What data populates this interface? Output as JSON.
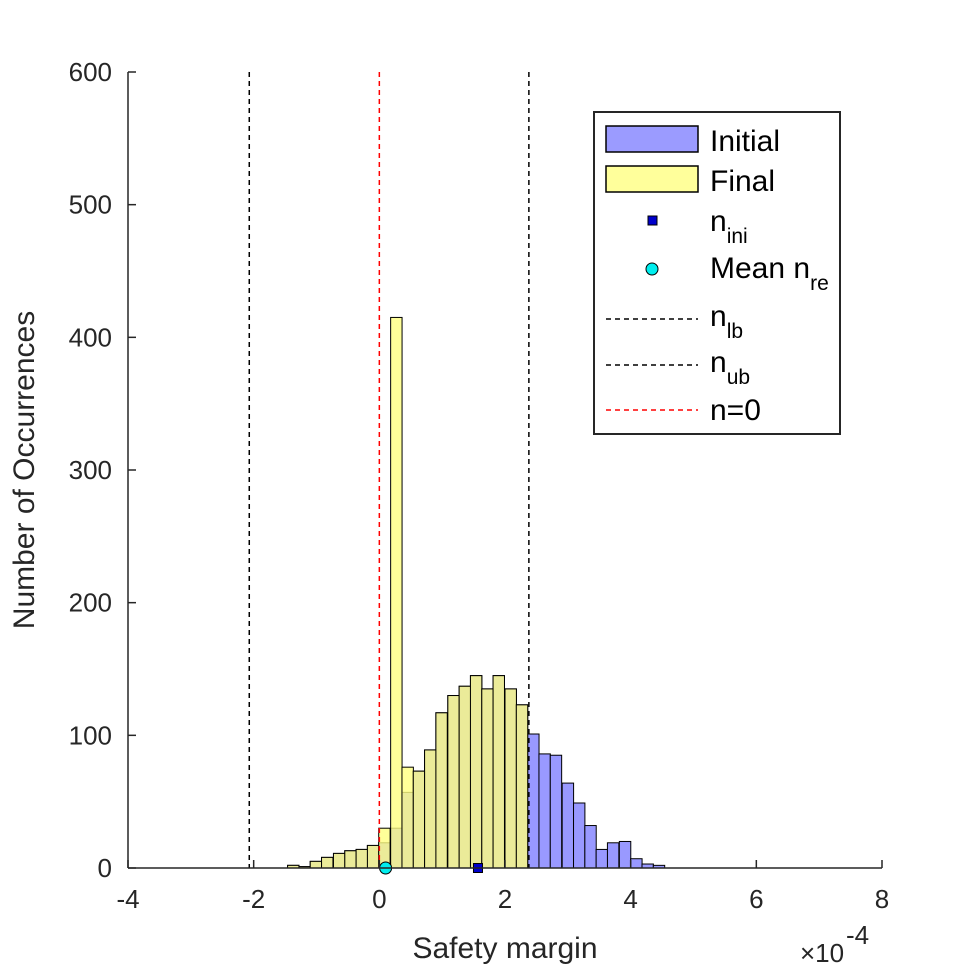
{
  "chart_data": {
    "type": "bar",
    "subtype": "overlaid-histogram",
    "title": "",
    "xlabel": "Safety margin",
    "ylabel": "Number of Occurrences",
    "x_exponent_label": "×10",
    "x_exponent_power": "-4",
    "xlim": [
      -4,
      8
    ],
    "ylim": [
      0,
      600
    ],
    "x_ticks": [
      -4,
      -2,
      0,
      2,
      4,
      6,
      8
    ],
    "x_tick_labels": [
      "-4",
      "-2",
      "0",
      "2",
      "4",
      "6",
      "8"
    ],
    "y_ticks": [
      0,
      100,
      200,
      300,
      400,
      500,
      600
    ],
    "y_tick_labels": [
      "0",
      "100",
      "200",
      "300",
      "400",
      "500",
      "600"
    ],
    "grid": false,
    "legend_position": "top-right",
    "bin_width": 0.1817,
    "series": [
      {
        "name": "Initial",
        "color": "#8080ff",
        "opacity": 0.8,
        "bin_starts": [
          -1.46,
          -1.28,
          -1.1,
          -0.92,
          -0.73,
          -0.55,
          -0.37,
          -0.19,
          -0.01,
          0.18,
          0.36,
          0.54,
          0.72,
          0.9,
          1.09,
          1.27,
          1.45,
          1.63,
          1.81,
          2.0,
          2.18,
          2.36,
          2.54,
          2.72,
          2.91,
          3.09,
          3.27,
          3.45,
          3.63,
          3.82,
          4.0,
          4.18,
          4.36
        ],
        "values": [
          2,
          1,
          5,
          8,
          11,
          13,
          14,
          17,
          19,
          30,
          57,
          73,
          89,
          117,
          130,
          137,
          145,
          135,
          145,
          135,
          123,
          101,
          86,
          85,
          64,
          49,
          32,
          14,
          19,
          20,
          7,
          3,
          2
        ]
      },
      {
        "name": "Final",
        "color": "#ffff80",
        "opacity": 0.8,
        "bin_starts": [
          -1.46,
          -1.28,
          -1.1,
          -0.92,
          -0.73,
          -0.55,
          -0.37,
          -0.19,
          -0.01,
          0.18,
          0.36,
          0.54,
          0.72,
          0.9,
          1.09,
          1.27,
          1.45,
          1.63,
          1.81,
          2.0,
          2.18
        ],
        "values": [
          2,
          1,
          5,
          8,
          11,
          13,
          14,
          17,
          30,
          415,
          76,
          73,
          89,
          117,
          130,
          137,
          145,
          135,
          145,
          135,
          123
        ]
      }
    ],
    "markers": [
      {
        "name": "n_ini",
        "label_main": "n",
        "label_sub": "ini",
        "shape": "square",
        "color": "#0000cc",
        "x": 1.57,
        "y": 0
      },
      {
        "name": "mean_n_re",
        "label_main": "Mean n",
        "label_sub": "re",
        "shape": "circle",
        "color": "#00eeee",
        "x": 0.1,
        "y": 0
      }
    ],
    "reference_lines": [
      {
        "name": "n_lb",
        "label_main": "n",
        "label_sub": "lb",
        "x": -2.07,
        "color": "#000000",
        "style": "dashed"
      },
      {
        "name": "n_ub",
        "label_main": "n",
        "label_sub": "ub",
        "x": 2.38,
        "color": "#000000",
        "style": "dashed"
      },
      {
        "name": "n=0",
        "label_main": "n=0",
        "label_sub": "",
        "x": 0,
        "color": "#ff0000",
        "style": "dashed"
      }
    ]
  }
}
